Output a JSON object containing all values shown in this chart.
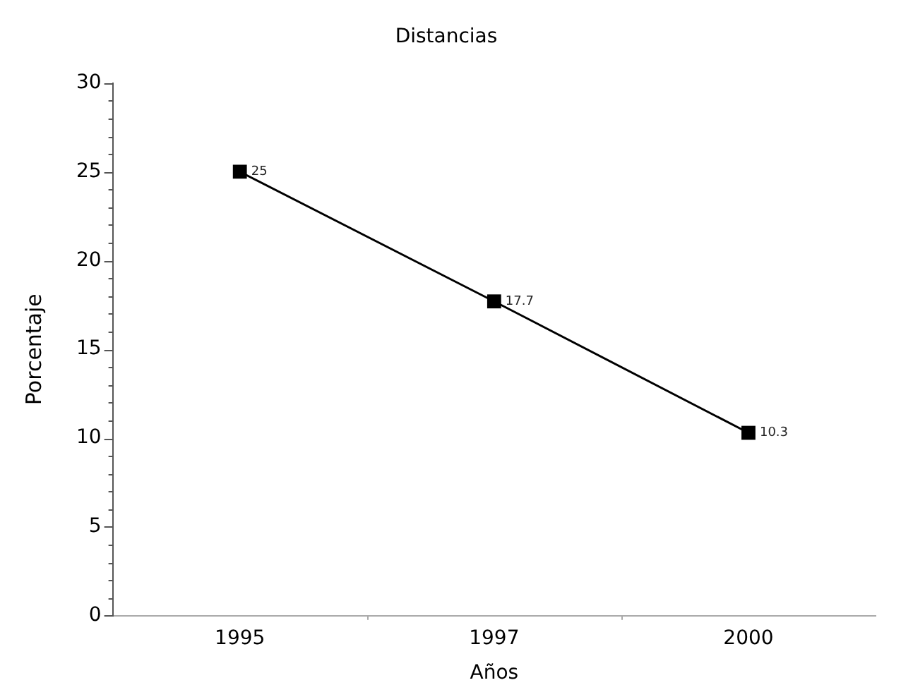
{
  "chart_data": {
    "type": "line",
    "title": "Distancias",
    "xlabel": "Años",
    "ylabel": "Porcentaje",
    "categories": [
      "1995",
      "1997",
      "2000"
    ],
    "series": [
      {
        "color": "#000000",
        "values": [
          25,
          17.7,
          10.3
        ]
      }
    ],
    "ylim": [
      0,
      30
    ],
    "yticks": [
      0,
      {
        "value": 1,
        "label": null
      },
      {
        "value": 2,
        "label": null
      },
      {
        "value": 3,
        "label": null
      },
      {
        "value": 4,
        "label": null
      },
      5,
      {
        "value": 6,
        "label": null
      },
      {
        "value": 7,
        "label": null
      },
      {
        "value": 8,
        "label": null
      },
      {
        "value": 9,
        "label": null
      },
      10,
      {
        "value": 11,
        "label": null
      },
      {
        "value": 12,
        "label": null
      },
      {
        "value": 13,
        "label": null
      },
      {
        "value": 14,
        "label": null
      },
      15,
      {
        "value": 16,
        "label": null
      },
      {
        "value": 17,
        "label": null
      },
      {
        "value": 18,
        "label": null
      },
      {
        "value": 19,
        "label": null
      },
      20,
      {
        "value": 21,
        "label": null
      },
      {
        "value": 22,
        "label": null
      },
      {
        "value": 23,
        "label": null
      },
      {
        "value": 24,
        "label": null
      },
      25,
      {
        "value": 26,
        "label": null
      },
      {
        "value": 27,
        "label": null
      },
      {
        "value": 28,
        "label": null
      },
      {
        "value": 29,
        "label": null
      },
      30
    ],
    "marker": "square",
    "line_style": "solid",
    "data_labels": true,
    "grid": false,
    "legend": false
  }
}
